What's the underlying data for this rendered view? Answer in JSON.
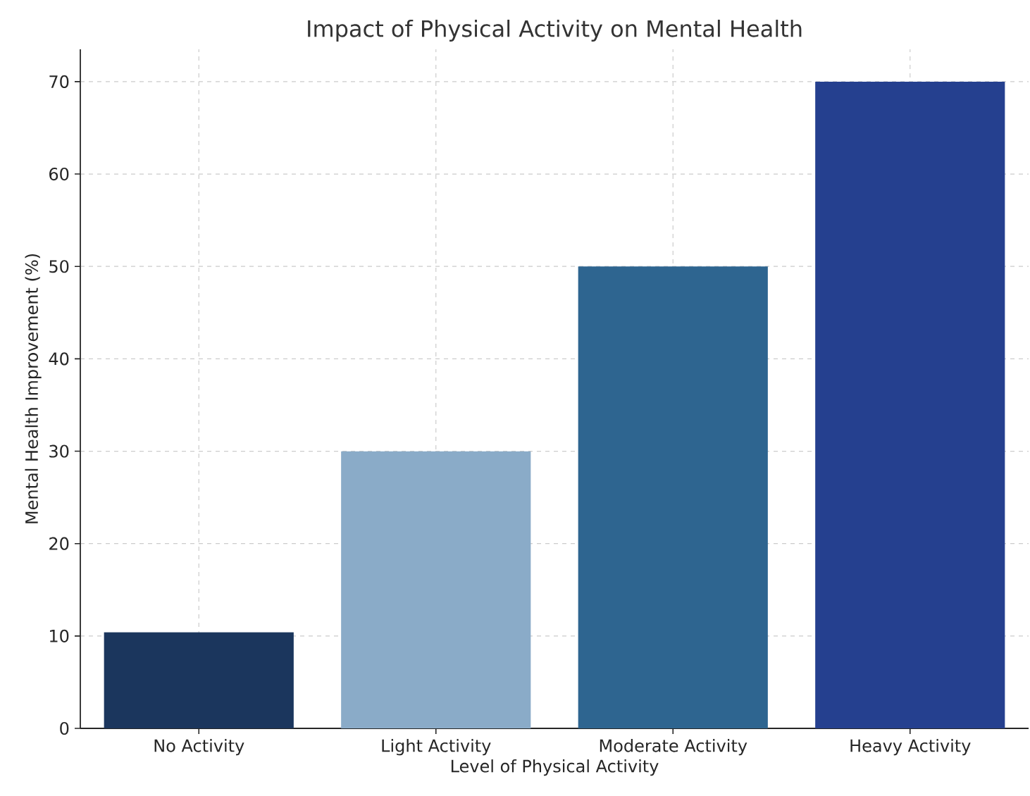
{
  "chart_data": {
    "type": "bar",
    "title": "Impact of Physical Activity on Mental Health",
    "xlabel": "Level of Physical Activity",
    "ylabel": "Mental Health Improvement (%)",
    "categories": [
      "No Activity",
      "Light Activity",
      "Moderate Activity",
      "Heavy Activity"
    ],
    "values": [
      10.4,
      30,
      50,
      70
    ],
    "colors": [
      "#1b365d",
      "#8aabc8",
      "#2e6590",
      "#25408f"
    ],
    "ylim": [
      0,
      73.5
    ],
    "yticks": [
      0,
      10,
      20,
      30,
      40,
      50,
      60,
      70
    ],
    "grid": true
  }
}
